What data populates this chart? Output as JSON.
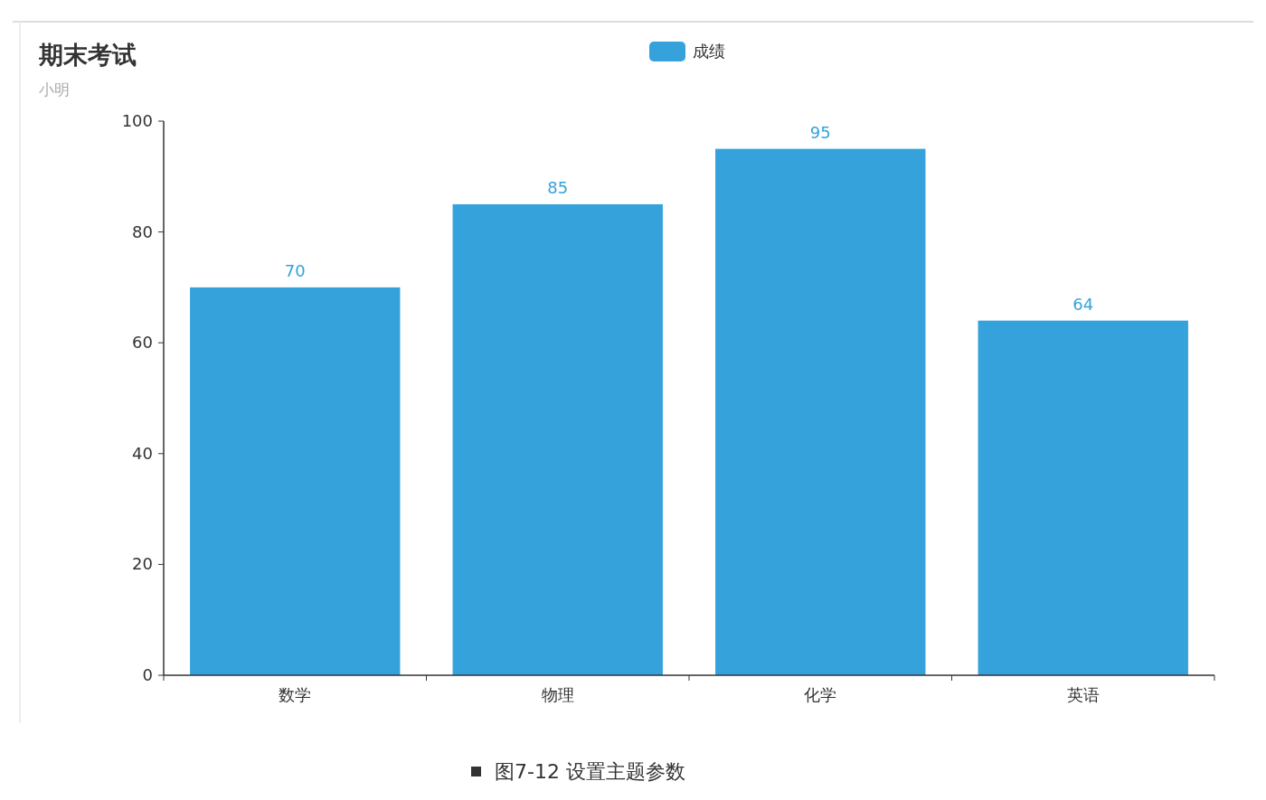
{
  "chart_data": {
    "type": "bar",
    "title": "期末考试",
    "subtitle": "小明",
    "categories": [
      "数学",
      "物理",
      "化学",
      "英语"
    ],
    "series": [
      {
        "name": "成绩",
        "color": "#36a2db",
        "values": [
          70,
          85,
          95,
          64
        ]
      }
    ],
    "ylim": [
      0,
      100
    ],
    "yticks": [
      0,
      20,
      40,
      60,
      80,
      100
    ],
    "data_labels": true,
    "legend": "top",
    "grid": false,
    "annotations": [
      "图7-12  设置主题参数"
    ]
  }
}
